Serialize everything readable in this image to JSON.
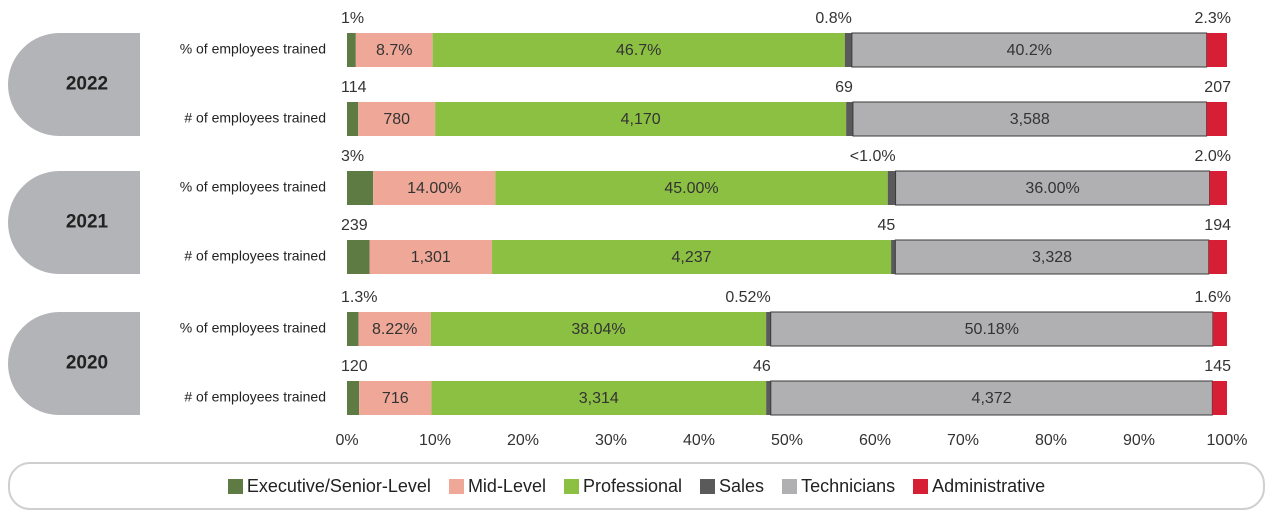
{
  "chart_data": {
    "type": "bar",
    "orientation": "horizontal",
    "stacking": "percent",
    "groups": [
      "2022",
      "2021",
      "2020"
    ],
    "categories": [
      "% of employees trained",
      "# of employees trained",
      "% of employees trained",
      "# of employees trained",
      "% of employees trained",
      "# of employees trained"
    ],
    "xlim": [
      0,
      100
    ],
    "xticks": [
      {
        "value": 0,
        "label": "0%"
      },
      {
        "value": 10,
        "label": "10%"
      },
      {
        "value": 20,
        "label": "20%"
      },
      {
        "value": 30,
        "label": "30%"
      },
      {
        "value": 40,
        "label": "40%"
      },
      {
        "value": 50,
        "label": "50%"
      },
      {
        "value": 60,
        "label": "60%"
      },
      {
        "value": 70,
        "label": "70%"
      },
      {
        "value": 80,
        "label": "80%"
      },
      {
        "value": 90,
        "label": "90%"
      },
      {
        "value": 100,
        "label": "100%"
      }
    ],
    "legend": "bottom",
    "series": [
      {
        "name": "Executive/Senior-Level",
        "color": "#5e7b44",
        "values": [
          1,
          114,
          3,
          239,
          1.3,
          120
        ],
        "value_labels": [
          "1%",
          "114",
          "3%",
          "239",
          "1.3%",
          "120"
        ]
      },
      {
        "name": "Mid-Level",
        "color": "#efa898",
        "values": [
          8.7,
          780,
          14,
          1301,
          8.22,
          716
        ],
        "value_labels": [
          "8.7%",
          "780",
          "14.00%",
          "1,301",
          "8.22%",
          "716"
        ]
      },
      {
        "name": "Professional",
        "color": "#8cc043",
        "values": [
          46.7,
          4170,
          45,
          4237,
          38.04,
          3314
        ],
        "value_labels": [
          "46.7%",
          "4,170",
          "45.00%",
          "4,237",
          "38.04%",
          "3,314"
        ]
      },
      {
        "name": "Sales",
        "color": "#5a5a5a",
        "values": [
          0.8,
          69,
          0.9,
          45,
          0.52,
          46
        ],
        "value_labels": [
          "0.8%",
          "69",
          "<1.0%",
          "45",
          "0.52%",
          "46"
        ]
      },
      {
        "name": "Technicians",
        "color": "#b0b0b3",
        "values": [
          40.2,
          3588,
          36,
          3328,
          50.18,
          4372
        ],
        "value_labels": [
          "40.2%",
          "3,588",
          "36.00%",
          "3,328",
          "50.18%",
          "4,372"
        ]
      },
      {
        "name": "Administrative",
        "color": "#d61f35",
        "values": [
          2.3,
          207,
          2,
          194,
          1.6,
          145
        ],
        "value_labels": [
          "2.3%",
          "207",
          "2.0%",
          "194",
          "1.6%",
          "145"
        ]
      }
    ]
  }
}
